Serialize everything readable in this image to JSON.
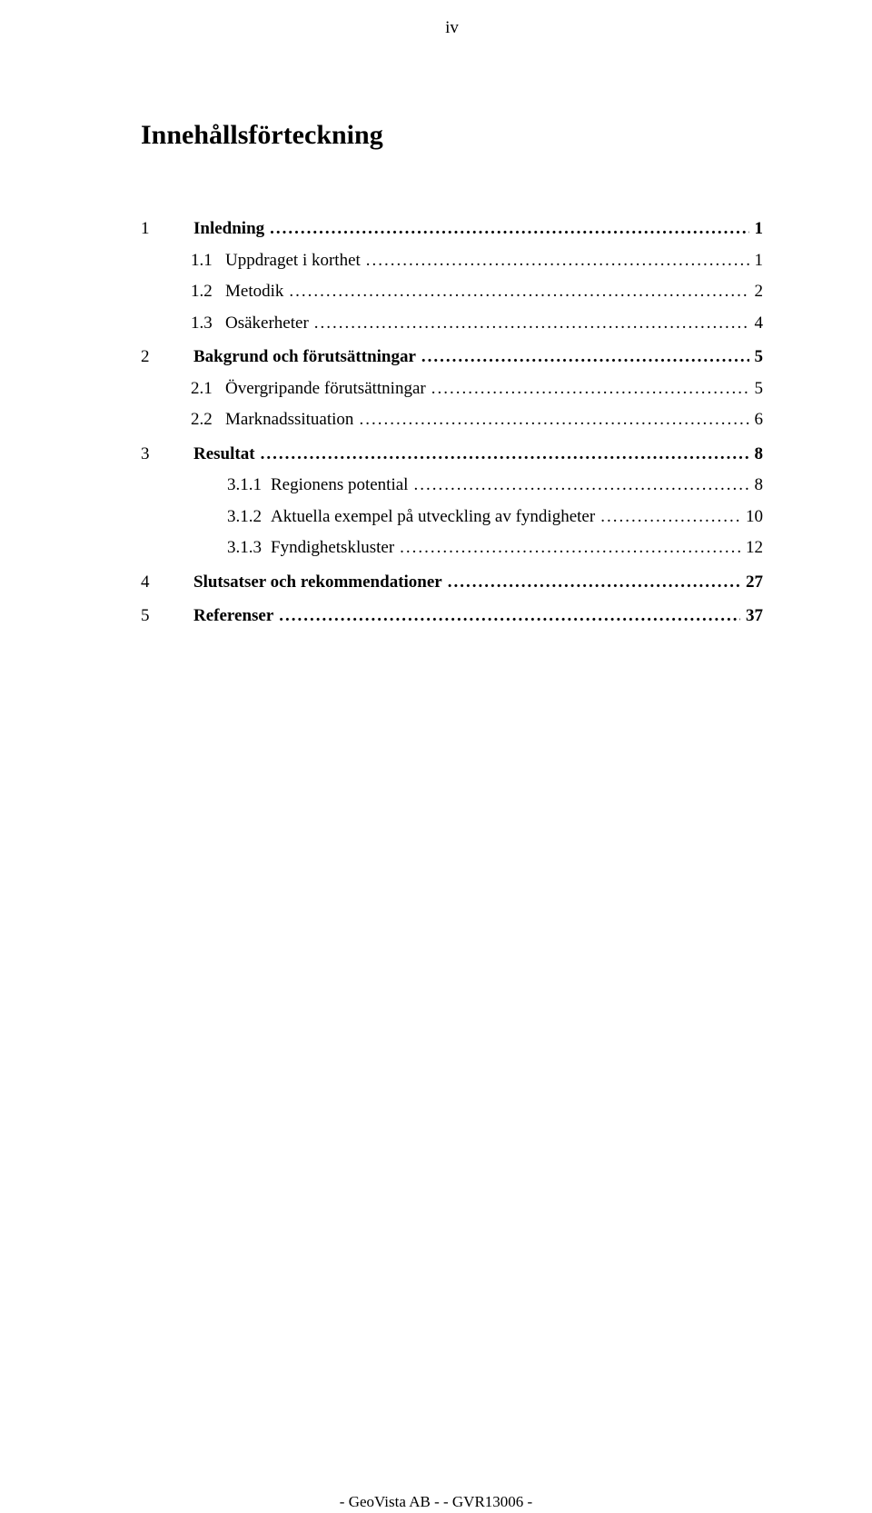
{
  "page_number_roman": "iv",
  "title": "Innehållsförteckning",
  "toc": [
    {
      "level": 1,
      "num": "1",
      "label": "Inledning",
      "page": "1"
    },
    {
      "level": 2,
      "num": "1.1",
      "label": "Uppdraget i korthet",
      "page": "1"
    },
    {
      "level": 2,
      "num": "1.2",
      "label": "Metodik",
      "page": "2"
    },
    {
      "level": 2,
      "num": "1.3",
      "label": "Osäkerheter",
      "page": "4"
    },
    {
      "level": 1,
      "num": "2",
      "label": "Bakgrund och förutsättningar",
      "page": "5"
    },
    {
      "level": 2,
      "num": "2.1",
      "label": "Övergripande förutsättningar",
      "page": "5"
    },
    {
      "level": 2,
      "num": "2.2",
      "label": "Marknadssituation",
      "page": "6"
    },
    {
      "level": 1,
      "num": "3",
      "label": "Resultat",
      "page": "8"
    },
    {
      "level": 3,
      "num": "3.1.1",
      "label": "Regionens potential",
      "page": "8"
    },
    {
      "level": 3,
      "num": "3.1.2",
      "label": "Aktuella exempel på utveckling av fyndigheter",
      "page": "10"
    },
    {
      "level": 3,
      "num": "3.1.3",
      "label": "Fyndighetskluster",
      "page": "12"
    },
    {
      "level": 1,
      "num": "4",
      "label": "Slutsatser och rekommendationer",
      "page": "27"
    },
    {
      "level": 1,
      "num": "5",
      "label": "Referenser",
      "page": "37"
    }
  ],
  "footer": "- GeoVista AB - - GVR13006 -",
  "colors": {
    "background": "#ffffff",
    "text": "#000000"
  },
  "typography": {
    "font_family": "Times New Roman, serif",
    "title_size_pt": 22,
    "body_size_pt": 14
  }
}
